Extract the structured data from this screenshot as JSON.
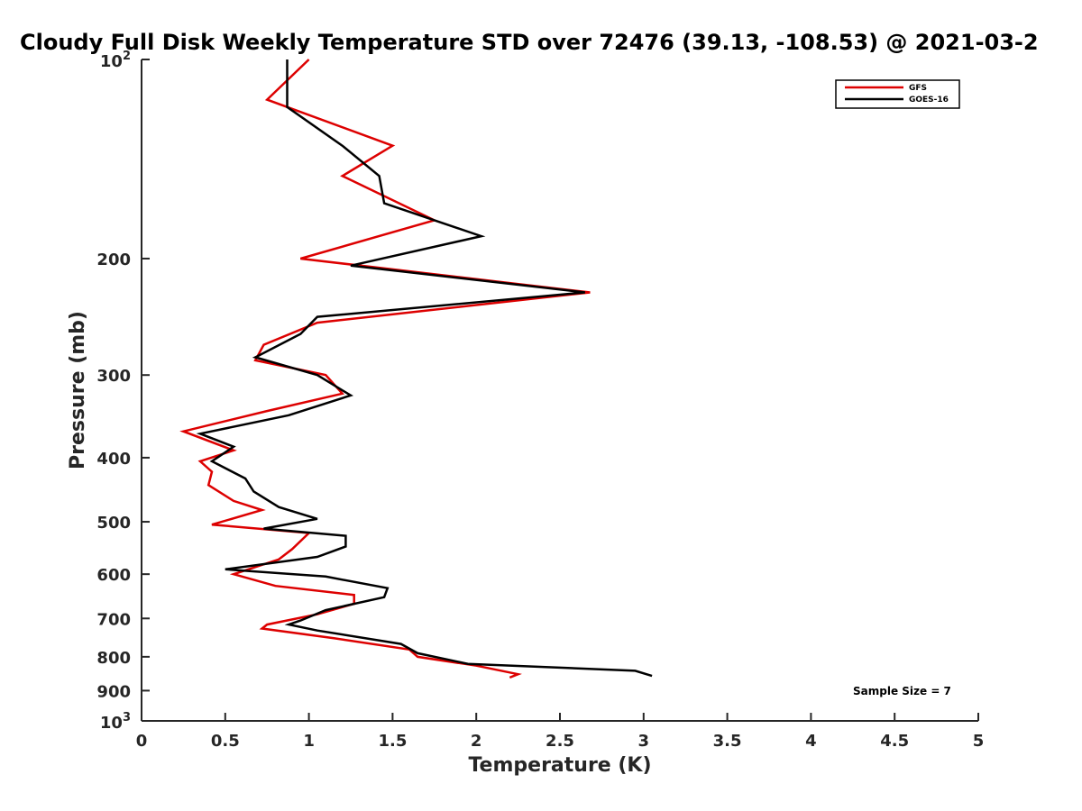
{
  "chart_data": {
    "type": "line",
    "title": "Cloudy Full Disk Weekly Temperature STD over 72476 (39.13, -108.53) @ 2021-03-2",
    "xlabel": "Temperature (K)",
    "ylabel": "Pressure (mb)",
    "xlim": [
      0,
      5
    ],
    "ylim": [
      100,
      1000
    ],
    "y_scale": "log",
    "y_reversed": true,
    "x_ticks": [
      "0",
      "0.5",
      "1",
      "1.5",
      "2",
      "2.5",
      "3",
      "3.5",
      "4",
      "4.5",
      "5"
    ],
    "y_ticks": [
      {
        "value": 100,
        "base": "10",
        "exp": "2"
      },
      {
        "value": 200,
        "label": "200"
      },
      {
        "value": 300,
        "label": "300"
      },
      {
        "value": 400,
        "label": "400"
      },
      {
        "value": 500,
        "label": "500"
      },
      {
        "value": 600,
        "label": "600"
      },
      {
        "value": 700,
        "label": "700"
      },
      {
        "value": 800,
        "label": "800"
      },
      {
        "value": 900,
        "label": "900"
      },
      {
        "value": 1000,
        "base": "10",
        "exp": "3"
      }
    ],
    "legend_position": "top-right",
    "annotation": "Sample Size = 7",
    "series": [
      {
        "name": "GFS",
        "color": "#dd0000",
        "points": [
          [
            1.0,
            100
          ],
          [
            0.75,
            115
          ],
          [
            1.5,
            135
          ],
          [
            1.2,
            150
          ],
          [
            1.75,
            175
          ],
          [
            0.95,
            200
          ],
          [
            2.68,
            225
          ],
          [
            1.05,
            250
          ],
          [
            0.73,
            270
          ],
          [
            0.68,
            285
          ],
          [
            1.1,
            300
          ],
          [
            1.2,
            320
          ],
          [
            0.75,
            340
          ],
          [
            0.25,
            365
          ],
          [
            0.55,
            390
          ],
          [
            0.35,
            405
          ],
          [
            0.42,
            420
          ],
          [
            0.4,
            440
          ],
          [
            0.55,
            465
          ],
          [
            0.72,
            480
          ],
          [
            0.42,
            505
          ],
          [
            1.0,
            520
          ],
          [
            0.9,
            550
          ],
          [
            0.82,
            570
          ],
          [
            0.55,
            600
          ],
          [
            0.8,
            625
          ],
          [
            1.27,
            645
          ],
          [
            1.27,
            665
          ],
          [
            1.05,
            690
          ],
          [
            0.75,
            715
          ],
          [
            0.72,
            725
          ],
          [
            1.15,
            750
          ],
          [
            1.6,
            780
          ],
          [
            1.65,
            800
          ],
          [
            2.0,
            825
          ],
          [
            2.25,
            850
          ],
          [
            2.2,
            860
          ]
        ]
      },
      {
        "name": "GOES-16",
        "color": "#000000",
        "points": [
          [
            0.87,
            100
          ],
          [
            0.87,
            118
          ],
          [
            1.2,
            135
          ],
          [
            1.42,
            150
          ],
          [
            1.45,
            165
          ],
          [
            2.03,
            185
          ],
          [
            1.25,
            205
          ],
          [
            2.65,
            225
          ],
          [
            1.05,
            245
          ],
          [
            0.95,
            260
          ],
          [
            0.68,
            282
          ],
          [
            1.05,
            300
          ],
          [
            1.25,
            322
          ],
          [
            0.88,
            345
          ],
          [
            0.35,
            368
          ],
          [
            0.55,
            385
          ],
          [
            0.42,
            405
          ],
          [
            0.62,
            430
          ],
          [
            0.67,
            450
          ],
          [
            0.82,
            475
          ],
          [
            1.05,
            495
          ],
          [
            0.73,
            512
          ],
          [
            1.22,
            525
          ],
          [
            1.22,
            545
          ],
          [
            1.05,
            565
          ],
          [
            0.5,
            590
          ],
          [
            1.1,
            605
          ],
          [
            1.47,
            630
          ],
          [
            1.45,
            650
          ],
          [
            1.1,
            680
          ],
          [
            0.95,
            705
          ],
          [
            0.88,
            715
          ],
          [
            1.05,
            730
          ],
          [
            1.55,
            765
          ],
          [
            1.65,
            790
          ],
          [
            1.95,
            820
          ],
          [
            2.95,
            840
          ],
          [
            3.05,
            855
          ]
        ]
      }
    ]
  }
}
